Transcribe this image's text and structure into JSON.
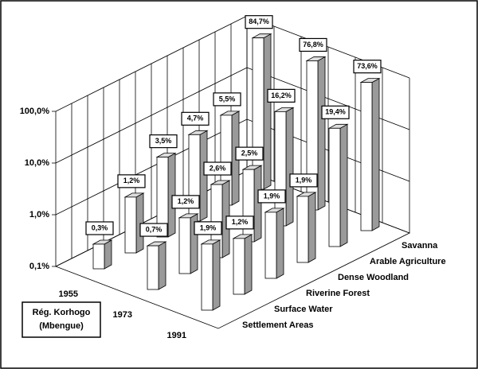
{
  "chart_data": {
    "type": "bar",
    "categories": [
      "Settlement Areas",
      "Surface Water",
      "Riverine Forest",
      "Dense Woodland",
      "Arable Agriculture",
      "Savanna"
    ],
    "series": [
      {
        "name": "1955",
        "color": "#ffffff",
        "values": [
          0.3,
          1.2,
          3.5,
          4.7,
          5.5,
          84.7
        ],
        "value_labels": [
          "0,3%",
          "1,2%",
          "3,5%",
          "4,7%",
          "5,5%",
          "84,7%"
        ]
      },
      {
        "name": "1973",
        "color": "#ffffff",
        "values": [
          0.7,
          1.2,
          2.6,
          2.5,
          16.2,
          76.8
        ],
        "value_labels": [
          "0,7%",
          "1,2%",
          "2,6%",
          "2,5%",
          "16,2%",
          "76,8%"
        ]
      },
      {
        "name": "1991",
        "color": "#ffffff",
        "values": [
          1.9,
          1.2,
          1.9,
          1.9,
          19.4,
          73.6
        ],
        "value_labels": [
          "1,9%",
          "1,2%",
          "1,9%",
          "1,9%",
          "19,4%",
          "73,6%"
        ]
      }
    ],
    "ylim": [
      0.1,
      100
    ],
    "yticks": [
      {
        "value": 0.1,
        "label": "0,1%"
      },
      {
        "value": 1,
        "label": "1,0%"
      },
      {
        "value": 10,
        "label": "10,0%"
      },
      {
        "value": 100,
        "label": "100,0%"
      }
    ],
    "log_scale": true,
    "grid": true,
    "annotation": [
      "Rég. Korhogo",
      "(Mbengue)"
    ]
  }
}
